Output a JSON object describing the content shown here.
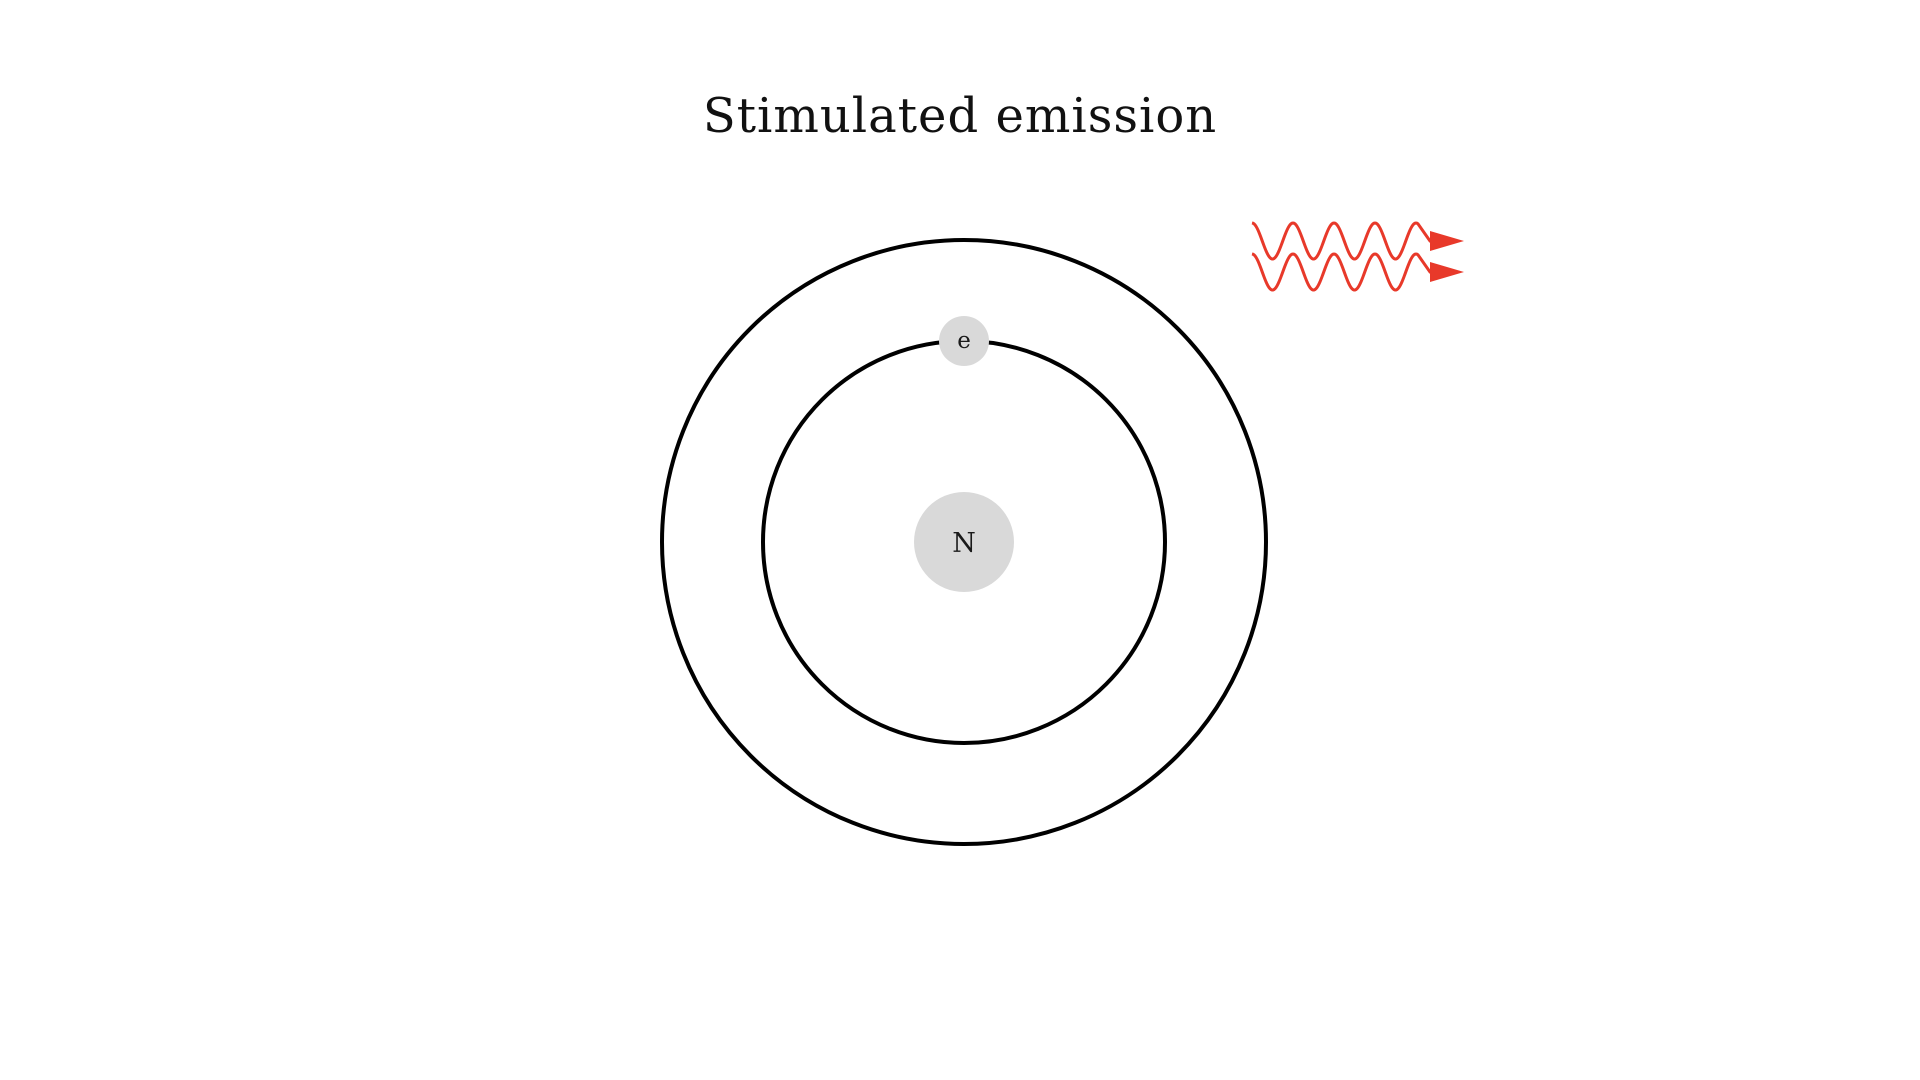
{
  "title": "Stimulated emission",
  "nucleus": {
    "label": "N",
    "fill": "#d9d9d9"
  },
  "electron": {
    "label": "e",
    "fill": "#d9d9d9"
  },
  "orbits": {
    "stroke": "#000000"
  },
  "photons": {
    "count": 2,
    "color": "#e8392a"
  }
}
